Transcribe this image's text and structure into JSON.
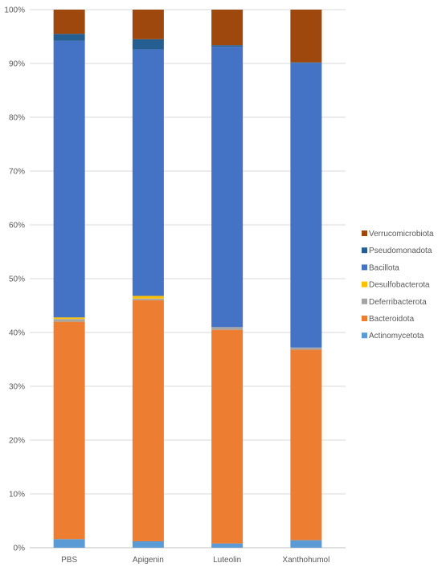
{
  "chart_data": {
    "type": "bar",
    "stacked": "percent",
    "categories": [
      "PBS",
      "Apigenin",
      "Luteolin",
      "Xanthohumol"
    ],
    "ylim": [
      0,
      100
    ],
    "yticks": [
      "0%",
      "10%",
      "20%",
      "30%",
      "40%",
      "50%",
      "60%",
      "70%",
      "80%",
      "90%",
      "100%"
    ],
    "grid": true,
    "legend_position": "right",
    "series": [
      {
        "name": "Actinomycetota",
        "color": "#5B9BD5",
        "values": [
          1.6,
          1.2,
          0.8,
          1.4
        ]
      },
      {
        "name": "Bacteroidota",
        "color": "#ED7D31",
        "values": [
          40.4,
          44.8,
          39.7,
          35.4
        ]
      },
      {
        "name": "Deferribacterota",
        "color": "#A5A5A5",
        "values": [
          0.5,
          0.3,
          0.5,
          0.4
        ]
      },
      {
        "name": "Desulfobacterota",
        "color": "#FFC000",
        "values": [
          0.3,
          0.5,
          0.0,
          0.0
        ]
      },
      {
        "name": "Bacillota",
        "color": "#4472C4",
        "values": [
          51.4,
          45.8,
          52.1,
          52.9
        ]
      },
      {
        "name": "Pseudomonadota",
        "color": "#255E91",
        "values": [
          1.3,
          1.9,
          0.3,
          0.1
        ]
      },
      {
        "name": "Verrucomicrobiota",
        "color": "#9E480E",
        "values": [
          4.5,
          5.5,
          6.6,
          9.8
        ]
      }
    ]
  }
}
